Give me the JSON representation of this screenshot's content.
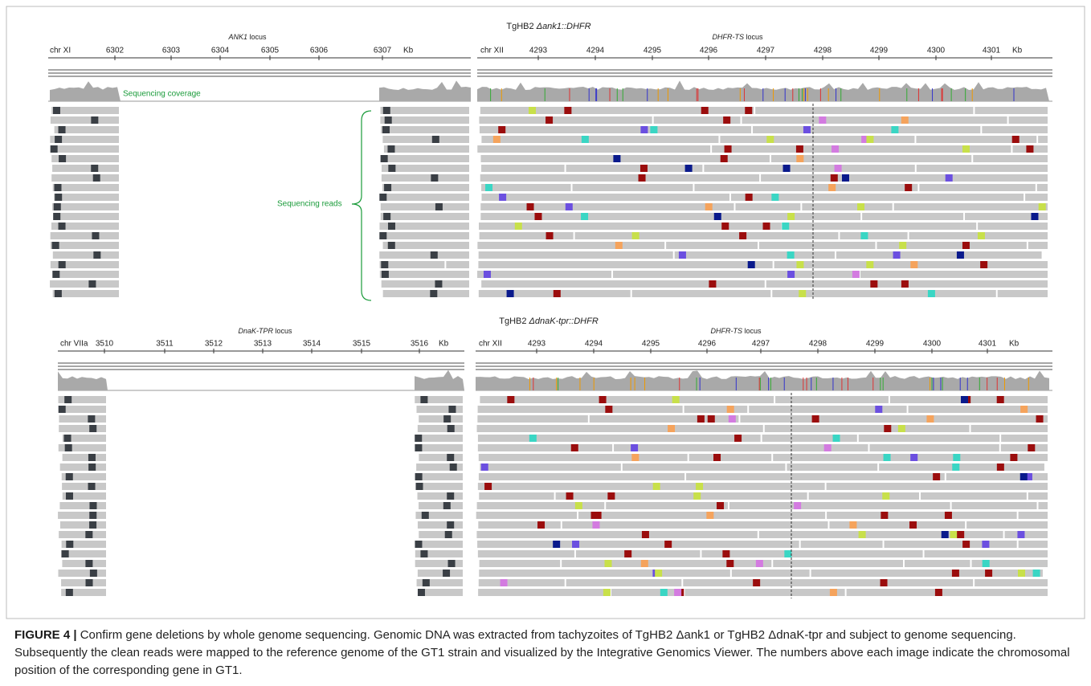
{
  "panels": [
    {
      "title_prefix": "TgHB2 ",
      "title_gene": "Δank1::DHFR",
      "left": {
        "locus_gene": "ANK1",
        "locus_suffix": " locus",
        "chrom": "chr XI",
        "ticks": [
          "6302",
          "6303",
          "6304",
          "6305",
          "6306",
          "6307"
        ],
        "unit": "Kb"
      },
      "right": {
        "locus_gene": "DHFR-TS",
        "locus_suffix": " locus",
        "chrom": "chr XII",
        "ticks": [
          "4293",
          "4294",
          "4295",
          "4296",
          "4297",
          "4298",
          "4299",
          "4300",
          "4301"
        ],
        "unit": "Kb"
      },
      "coverage_label": "Sequencing coverage",
      "reads_label": "Sequencing reads"
    },
    {
      "title_prefix": "TgHB2 ",
      "title_gene": "ΔdnaK-tpr::DHFR",
      "left": {
        "locus_gene": "DnaK-TPR",
        "locus_suffix": " locus",
        "chrom": "chr VIIa",
        "ticks": [
          "3510",
          "3511",
          "3512",
          "3513",
          "3514",
          "3515",
          "3516"
        ],
        "unit": "Kb"
      },
      "right": {
        "locus_gene": "DHFR-TS",
        "locus_suffix": " locus",
        "chrom": "chr XII",
        "ticks": [
          "4293",
          "4294",
          "4295",
          "4296",
          "4297",
          "4298",
          "4299",
          "4300",
          "4301"
        ],
        "unit": "Kb"
      }
    }
  ],
  "caption": {
    "label": "FIGURE 4 |",
    "text": " Confirm gene deletions by whole genome sequencing. Genomic DNA was extracted from tachyzoites of TgHB2 Δank1 or TgHB2 ΔdnaK-tpr and subject to genome sequencing. Subsequently the clean reads were mapped to the reference genome of the GT1 strain and visualized by the Integrative Genomics Viewer. The numbers above each image indicate the chromosomal position of the corresponding gene in GT1."
  }
}
